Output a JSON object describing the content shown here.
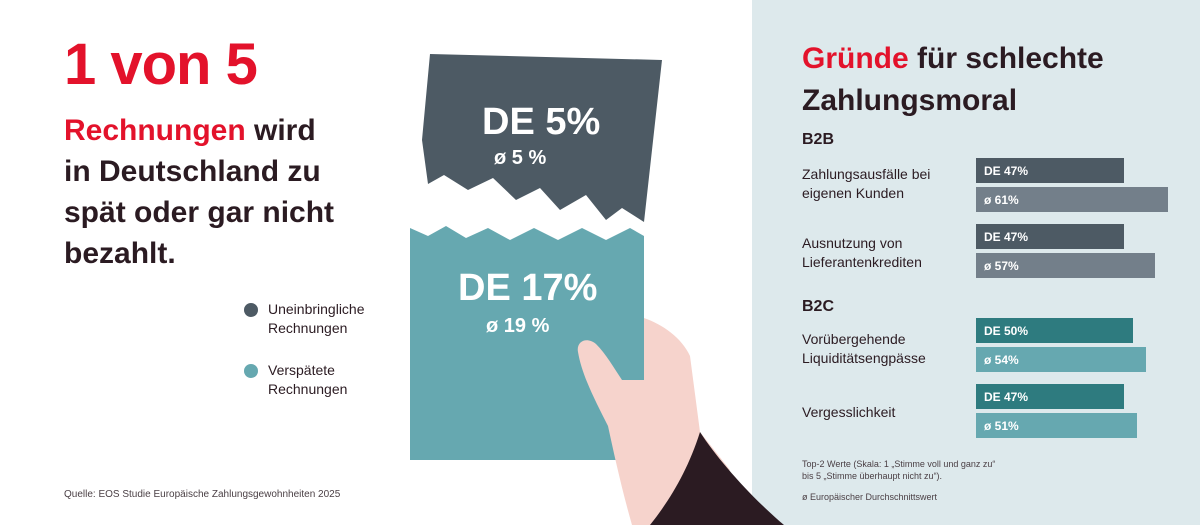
{
  "headline": "1 von 5",
  "subhead": {
    "accent": "Rechnungen",
    "rest_line1": " wird",
    "line2": "in Deutschland zu",
    "line3": "spät oder gar nicht",
    "line4": "bezahlt."
  },
  "legend": {
    "uncollectable": {
      "line1": "Uneinbringliche",
      "line2": "Rechnungen",
      "color": "#4d5a64"
    },
    "late": {
      "line1": "Verspätete",
      "line2": "Rechnungen",
      "color": "#66a8b0"
    }
  },
  "illustration": {
    "uncollectable": {
      "de": "DE 5%",
      "eu": "ø  5 %"
    },
    "late": {
      "de": "DE 17%",
      "eu": "ø  19 %"
    }
  },
  "source": "Quelle: EOS Studie Europäische Zahlungsgewohnheiten 2025",
  "panel": {
    "title_accent": "Gründe",
    "title_rest_line1": " für schlechte",
    "title_line2": "Zahlungsmoral"
  },
  "chart_data": {
    "type": "bar",
    "orientation": "horizontal",
    "title": "Gründe für schlechte Zahlungsmoral",
    "groups": [
      {
        "name": "B2B",
        "categories": [
          {
            "label_line1": "Zahlungsausfälle bei",
            "label_line2": "eigenen Kunden",
            "de": 47,
            "eu": 61,
            "de_label": "DE 47%",
            "eu_label": "ø   61%"
          },
          {
            "label_line1": "Ausnutzung von",
            "label_line2": "Lieferantenkrediten",
            "de": 47,
            "eu": 57,
            "de_label": "DE 47%",
            "eu_label": "ø   57%"
          }
        ],
        "colors": {
          "de": "#4d5a64",
          "eu": "#737f8a"
        }
      },
      {
        "name": "B2C",
        "categories": [
          {
            "label_line1": "Vorübergehende",
            "label_line2": "Liquiditätsengpässe",
            "de": 50,
            "eu": 54,
            "de_label": "DE 50%",
            "eu_label": "ø   54%"
          },
          {
            "label_line1": "Vergesslichkeit",
            "label_line2": "",
            "de": 47,
            "eu": 51,
            "de_label": "DE 47%",
            "eu_label": "ø   51%"
          }
        ],
        "colors": {
          "de": "#2e7b7f",
          "eu": "#66a8b0"
        }
      }
    ]
  },
  "footnotes": {
    "scale_line1": "Top-2 Werte (Skala: 1 „Stimme voll und ganz zu“",
    "scale_line2": "bis 5 „Stimme überhaupt nicht zu“).",
    "avg": "ø Europäischer Durchschnittswert"
  }
}
